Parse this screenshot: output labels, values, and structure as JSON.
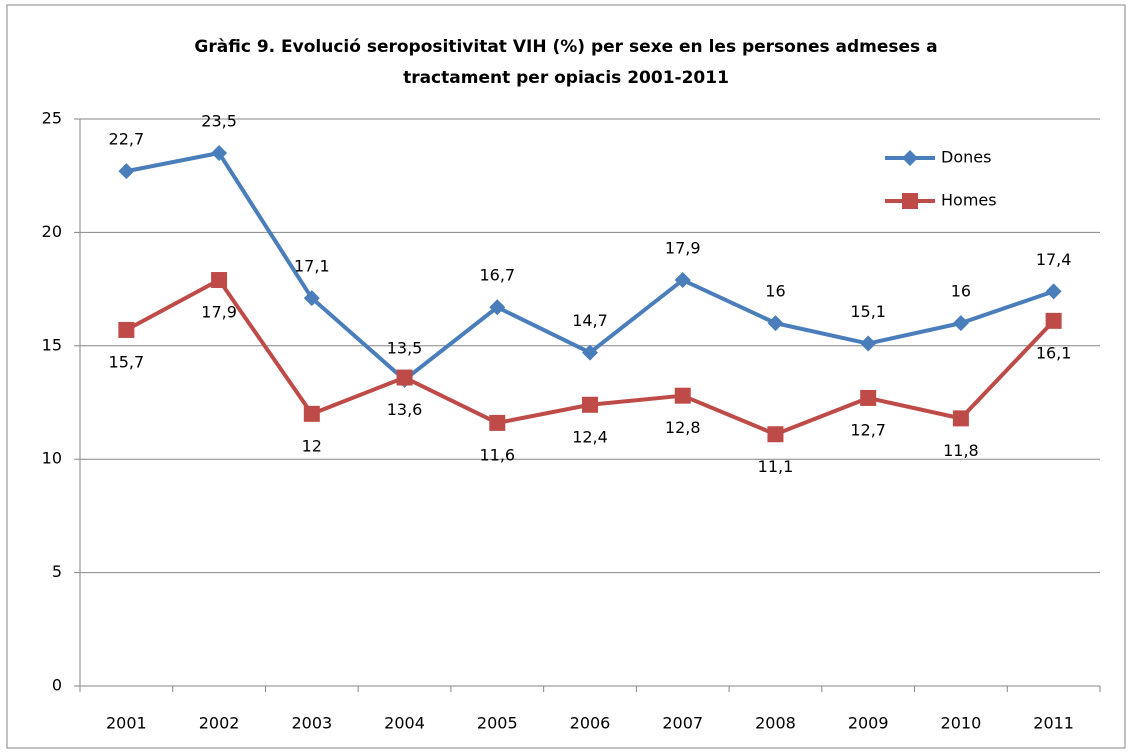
{
  "chart_data": {
    "type": "line",
    "title": [
      "Gràfic 9. Evolució seropositivitat VIH (%) per sexe en les persones admeses a",
      "tractament per opiacis 2001-2011"
    ],
    "categories": [
      "2001",
      "2002",
      "2003",
      "2004",
      "2005",
      "2006",
      "2007",
      "2008",
      "2009",
      "2010",
      "2011"
    ],
    "series": [
      {
        "name": "Dones",
        "color": "#4a7ebb",
        "marker": "diamond",
        "values": [
          22.7,
          23.5,
          17.1,
          13.5,
          16.7,
          14.7,
          17.9,
          16,
          15.1,
          16,
          17.4
        ],
        "value_labels": [
          "22,7",
          "23,5",
          "17,1",
          "13,5",
          "16,7",
          "14,7",
          "17,9",
          "16",
          "15,1",
          "16",
          "17,4"
        ]
      },
      {
        "name": "Homes",
        "color": "#be4b48",
        "marker": "square",
        "values": [
          15.7,
          17.9,
          12,
          13.6,
          11.6,
          12.4,
          12.8,
          11.1,
          12.7,
          11.8,
          16.1
        ],
        "value_labels": [
          "15,7",
          "17,9",
          "12",
          "13,6",
          "11,6",
          "12,4",
          "12,8",
          "11,1",
          "12,7",
          "11,8",
          "16,1"
        ]
      }
    ],
    "ylim": [
      0,
      25
    ],
    "yticks": [
      0,
      5,
      10,
      15,
      20,
      25
    ],
    "grid": true,
    "legend": "top-right"
  }
}
